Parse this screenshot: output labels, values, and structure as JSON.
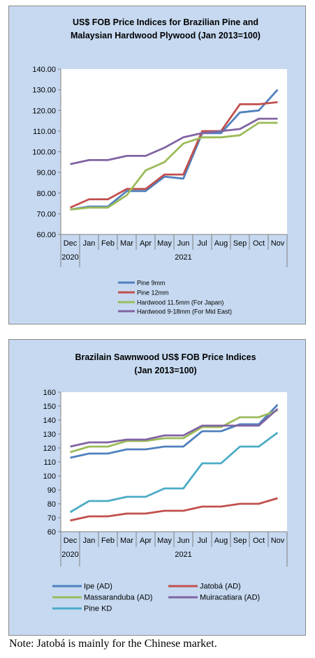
{
  "chart_data": [
    {
      "type": "line",
      "title_lines": [
        "US$ FOB Price Indices for Brazilian Pine and",
        "Malaysian Hardwood Plywood (Jan 2013=100)"
      ],
      "categories": [
        "Dec",
        "Jan",
        "Feb",
        "Mar",
        "Apr",
        "May",
        "Jun",
        "Jul",
        "Aug",
        "Sep",
        "Oct",
        "Nov"
      ],
      "year_labels": [
        "2020",
        "2021"
      ],
      "ylim": [
        60,
        140
      ],
      "yticks": [
        "60.00",
        "70.00",
        "80.00",
        "90.00",
        "100.00",
        "110.00",
        "120.00",
        "130.00",
        "140.00"
      ],
      "grid": false,
      "legend": "bottom",
      "series": [
        {
          "name": "Pine 9mm",
          "color": "#4f81bd",
          "values": [
            72,
            73.5,
            73.5,
            81,
            81,
            88,
            87,
            109,
            109,
            119,
            120,
            130
          ]
        },
        {
          "name": "Pine 12mm",
          "color": "#c0504d",
          "values": [
            73,
            77,
            77,
            82,
            82,
            89,
            89,
            110,
            110,
            123,
            123,
            124
          ]
        },
        {
          "name": "Hardwood 11.5mm (For Japan)",
          "color": "#9bbb59",
          "values": [
            72,
            73,
            73,
            79,
            91,
            95,
            104,
            107,
            107,
            108,
            114,
            114
          ]
        },
        {
          "name": "Hardwood 9-18mm (For Mid East)",
          "color": "#8064a2",
          "values": [
            94,
            96,
            96,
            98,
            98,
            102,
            107,
            109,
            110,
            111,
            116,
            116
          ]
        }
      ]
    },
    {
      "type": "line",
      "title_lines": [
        "Brazilain Sawnwood US$ FOB Price Indices",
        "(Jan 2013=100)"
      ],
      "categories": [
        "Dec",
        "Jan",
        "Feb",
        "Mar",
        "Apr",
        "May",
        "Jun",
        "Jul",
        "Aug",
        "Sep",
        "Oct",
        "Nov"
      ],
      "year_labels": [
        "2020",
        "2021"
      ],
      "ylim": [
        60,
        160
      ],
      "yticks": [
        "60",
        "70",
        "80",
        "90",
        "100",
        "110",
        "120",
        "130",
        "140",
        "150",
        "160"
      ],
      "grid": false,
      "legend": "bottom",
      "series": [
        {
          "name": "Ipe (AD)",
          "color": "#4f81bd",
          "values": [
            113,
            116,
            116,
            119,
            119,
            121,
            121,
            132,
            132,
            137,
            137,
            151
          ]
        },
        {
          "name": "Jatobá (AD)",
          "color": "#c0504d",
          "values": [
            68,
            71,
            71,
            73,
            73,
            75,
            75,
            78,
            78,
            80,
            80,
            84
          ]
        },
        {
          "name": "Massaranduba (AD)",
          "color": "#9bbb59",
          "values": [
            117,
            121,
            121,
            125,
            125,
            127,
            127,
            135,
            135,
            142,
            142,
            147
          ]
        },
        {
          "name": "Muiracatiara (AD)",
          "color": "#8064a2",
          "values": [
            121,
            124,
            124,
            126,
            126,
            129,
            129,
            136,
            136,
            136,
            136,
            148
          ]
        },
        {
          "name": "Pine KD",
          "color": "#4bacc6",
          "values": [
            74,
            82,
            82,
            85,
            85,
            91,
            91,
            109,
            109,
            121,
            121,
            131
          ]
        }
      ]
    }
  ],
  "note": "Note: Jatobá is mainly for the Chinese market."
}
